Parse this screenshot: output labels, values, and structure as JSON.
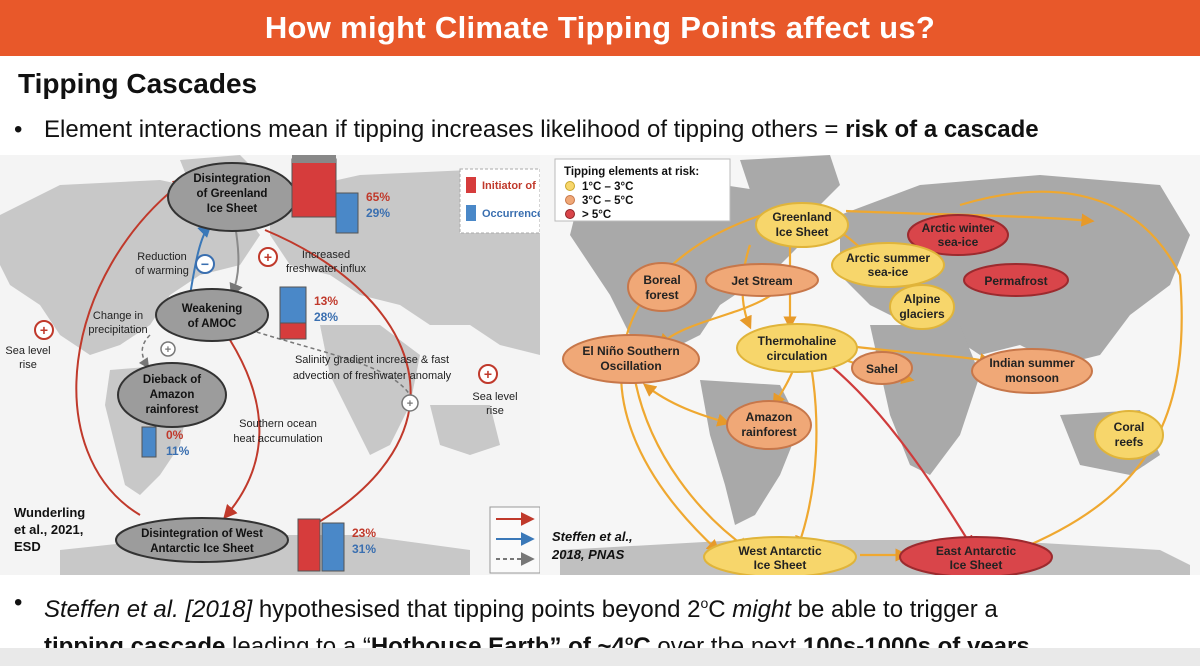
{
  "header": {
    "title": "How might Climate Tipping Points affect us?"
  },
  "subtitle": "Tipping Cascades",
  "bullet1": {
    "text": "Element interactions mean if tipping increases likelihood of tipping others = ",
    "bold": "risk of a cascade"
  },
  "left_diagram": {
    "nodes": {
      "greenland": [
        "Disintegration",
        "of Greenland",
        "Ice Sheet"
      ],
      "amoc": [
        "Weakening",
        "of AMOC"
      ],
      "amazon": [
        "Dieback of",
        "Amazon",
        "rainforest"
      ],
      "west_antarctic": [
        "Disintegration of West",
        "Antarctic Ice Sheet"
      ]
    },
    "percents": {
      "greenland": {
        "initiator": "65%",
        "occurrence": "29%"
      },
      "amoc": {
        "initiator": "13%",
        "occurrence": "28%"
      },
      "amazon": {
        "initiator": "0%",
        "occurrence": "11%"
      },
      "west_antarctic": {
        "initiator": "23%",
        "occurrence": "31%"
      }
    },
    "legend": {
      "initiator": "Initiator of",
      "occurrence": "Occurrence"
    },
    "annotations": {
      "reduction": [
        "Reduction",
        "of warming"
      ],
      "freshwater": [
        "Increased",
        "freshwater influx"
      ],
      "precip": [
        "Change in",
        "precipitation"
      ],
      "sea_left": [
        "Sea level",
        "rise"
      ],
      "sea_right": [
        "Sea level",
        "rise"
      ],
      "salinity": [
        "Salinity gradient increase & fast",
        "advection of freshwater anomaly"
      ],
      "southern": [
        "Southern ocean",
        "heat accumulation"
      ]
    },
    "citation": [
      "Wunderling",
      "et al., 2021,",
      "ESD"
    ]
  },
  "right_diagram": {
    "legend_title": "Tipping elements at risk:",
    "legend_items": [
      "1°C – 3°C",
      "3°C – 5°C",
      "> 5°C"
    ],
    "colors": {
      "low": "#f7d66b",
      "mid": "#f0a877",
      "high": "#d9454a",
      "arrow": "#efa830",
      "arrow_red": "#cf3c3c"
    },
    "nodes": {
      "greenland": [
        "Greenland",
        "Ice Sheet"
      ],
      "arctic_winter": [
        "Arctic winter",
        "sea-ice"
      ],
      "arctic_summer": [
        "Arctic summer",
        "sea-ice"
      ],
      "boreal": [
        "Boreal",
        "forest"
      ],
      "jet": [
        "Jet Stream"
      ],
      "permafrost": [
        "Permafrost"
      ],
      "alpine": [
        "Alpine",
        "glaciers"
      ],
      "thermo": [
        "Thermohaline",
        "circulation"
      ],
      "enso": [
        "El Niño Southern",
        "Oscillation"
      ],
      "sahel": [
        "Sahel"
      ],
      "monsoon": [
        "Indian summer",
        "monsoon"
      ],
      "amazon": [
        "Amazon",
        "rainforest"
      ],
      "coral": [
        "Coral",
        "reefs"
      ],
      "wais": [
        "West Antarctic",
        "Ice Sheet"
      ],
      "eais": [
        "East Antarctic",
        "Ice Sheet"
      ]
    },
    "citation": [
      "Steffen et al.,",
      "2018, PNAS"
    ]
  },
  "bullet2": {
    "line1_pre": "Steffen et al. [2018]",
    "line1_mid": " hypothesised that tipping points beyond 2",
    "line1_unit": "o",
    "line1_c": "C ",
    "line1_might": "might",
    "line1_post": " be able to trigger a",
    "line2_b1": "tipping cascade",
    "line2_t1": " leading to a “",
    "line2_b2": "Hothouse Earth” of ~4",
    "line2_unit": "o",
    "line2_b3": "C",
    "line2_t2": " over the next ",
    "line2_b4": "100s-1000s of years"
  }
}
